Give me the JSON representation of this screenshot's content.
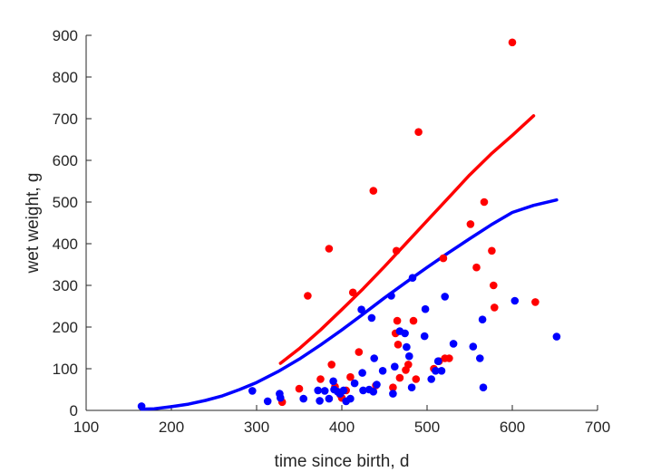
{
  "chart_data": {
    "type": "scatter",
    "title": "",
    "xlabel": "time since birth, d",
    "ylabel": "wet weight, g",
    "xlim": [
      100,
      700
    ],
    "ylim": [
      0,
      900
    ],
    "xticks": [
      "100",
      "200",
      "300",
      "400",
      "500",
      "600",
      "700"
    ],
    "yticks": [
      "0",
      "100",
      "200",
      "300",
      "400",
      "500",
      "600",
      "700",
      "800",
      "900"
    ],
    "grid": false,
    "legend": "none",
    "colors": {
      "red": "#ff0000",
      "blue": "#0000ff",
      "axis": "#262626"
    },
    "series": [
      {
        "color": "#ff0000",
        "kind": "scatter",
        "points": [
          [
            330,
            20
          ],
          [
            350,
            52
          ],
          [
            360,
            275
          ],
          [
            375,
            75
          ],
          [
            385,
            388
          ],
          [
            388,
            110
          ],
          [
            392,
            57
          ],
          [
            398,
            38
          ],
          [
            400,
            30
          ],
          [
            405,
            48
          ],
          [
            410,
            80
          ],
          [
            413,
            283
          ],
          [
            420,
            140
          ],
          [
            437,
            527
          ],
          [
            440,
            60
          ],
          [
            460,
            55
          ],
          [
            463,
            185
          ],
          [
            465,
            215
          ],
          [
            464,
            383
          ],
          [
            466,
            158
          ],
          [
            468,
            78
          ],
          [
            475,
            97
          ],
          [
            478,
            110
          ],
          [
            484,
            215
          ],
          [
            487,
            75
          ],
          [
            490,
            668
          ],
          [
            508,
            100
          ],
          [
            514,
            118
          ],
          [
            519,
            365
          ],
          [
            521,
            125
          ],
          [
            526,
            125
          ],
          [
            551,
            447
          ],
          [
            558,
            343
          ],
          [
            567,
            500
          ],
          [
            576,
            383
          ],
          [
            578,
            300
          ],
          [
            579,
            247
          ],
          [
            600,
            883
          ],
          [
            627,
            260
          ]
        ]
      },
      {
        "color": "#0000ff",
        "kind": "scatter",
        "points": [
          [
            165,
            10
          ],
          [
            295,
            47
          ],
          [
            313,
            22
          ],
          [
            327,
            40
          ],
          [
            328,
            30
          ],
          [
            355,
            28
          ],
          [
            372,
            48
          ],
          [
            374,
            23
          ],
          [
            380,
            47
          ],
          [
            385,
            28
          ],
          [
            390,
            70
          ],
          [
            391,
            50
          ],
          [
            395,
            45
          ],
          [
            398,
            40
          ],
          [
            402,
            48
          ],
          [
            405,
            22
          ],
          [
            410,
            28
          ],
          [
            415,
            65
          ],
          [
            423,
            242
          ],
          [
            424,
            90
          ],
          [
            425,
            48
          ],
          [
            432,
            50
          ],
          [
            435,
            222
          ],
          [
            437,
            45
          ],
          [
            438,
            125
          ],
          [
            441,
            62
          ],
          [
            448,
            95
          ],
          [
            458,
            275
          ],
          [
            460,
            40
          ],
          [
            462,
            105
          ],
          [
            468,
            190
          ],
          [
            474,
            185
          ],
          [
            476,
            152
          ],
          [
            479,
            130
          ],
          [
            482,
            55
          ],
          [
            483,
            318
          ],
          [
            497,
            178
          ],
          [
            498,
            243
          ],
          [
            505,
            75
          ],
          [
            510,
            95
          ],
          [
            513,
            118
          ],
          [
            517,
            95
          ],
          [
            521,
            273
          ],
          [
            531,
            160
          ],
          [
            554,
            153
          ],
          [
            562,
            125
          ],
          [
            565,
            218
          ],
          [
            566,
            55
          ],
          [
            603,
            263
          ],
          [
            652,
            177
          ]
        ]
      },
      {
        "color": "#ff0000",
        "kind": "line",
        "points": [
          [
            328,
            113
          ],
          [
            350,
            148
          ],
          [
            375,
            193
          ],
          [
            400,
            242
          ],
          [
            425,
            292
          ],
          [
            450,
            345
          ],
          [
            475,
            400
          ],
          [
            500,
            455
          ],
          [
            525,
            510
          ],
          [
            550,
            565
          ],
          [
            575,
            615
          ],
          [
            600,
            660
          ],
          [
            625,
            707
          ]
        ]
      },
      {
        "color": "#0000ff",
        "kind": "line",
        "points": [
          [
            165,
            3
          ],
          [
            180,
            4
          ],
          [
            200,
            9
          ],
          [
            220,
            15
          ],
          [
            240,
            24
          ],
          [
            260,
            35
          ],
          [
            280,
            50
          ],
          [
            300,
            67
          ],
          [
            325,
            93
          ],
          [
            350,
            123
          ],
          [
            375,
            157
          ],
          [
            400,
            193
          ],
          [
            425,
            231
          ],
          [
            450,
            270
          ],
          [
            475,
            307
          ],
          [
            500,
            343
          ],
          [
            525,
            378
          ],
          [
            550,
            412
          ],
          [
            575,
            445
          ],
          [
            600,
            475
          ],
          [
            625,
            492
          ],
          [
            652,
            505
          ]
        ]
      }
    ]
  }
}
